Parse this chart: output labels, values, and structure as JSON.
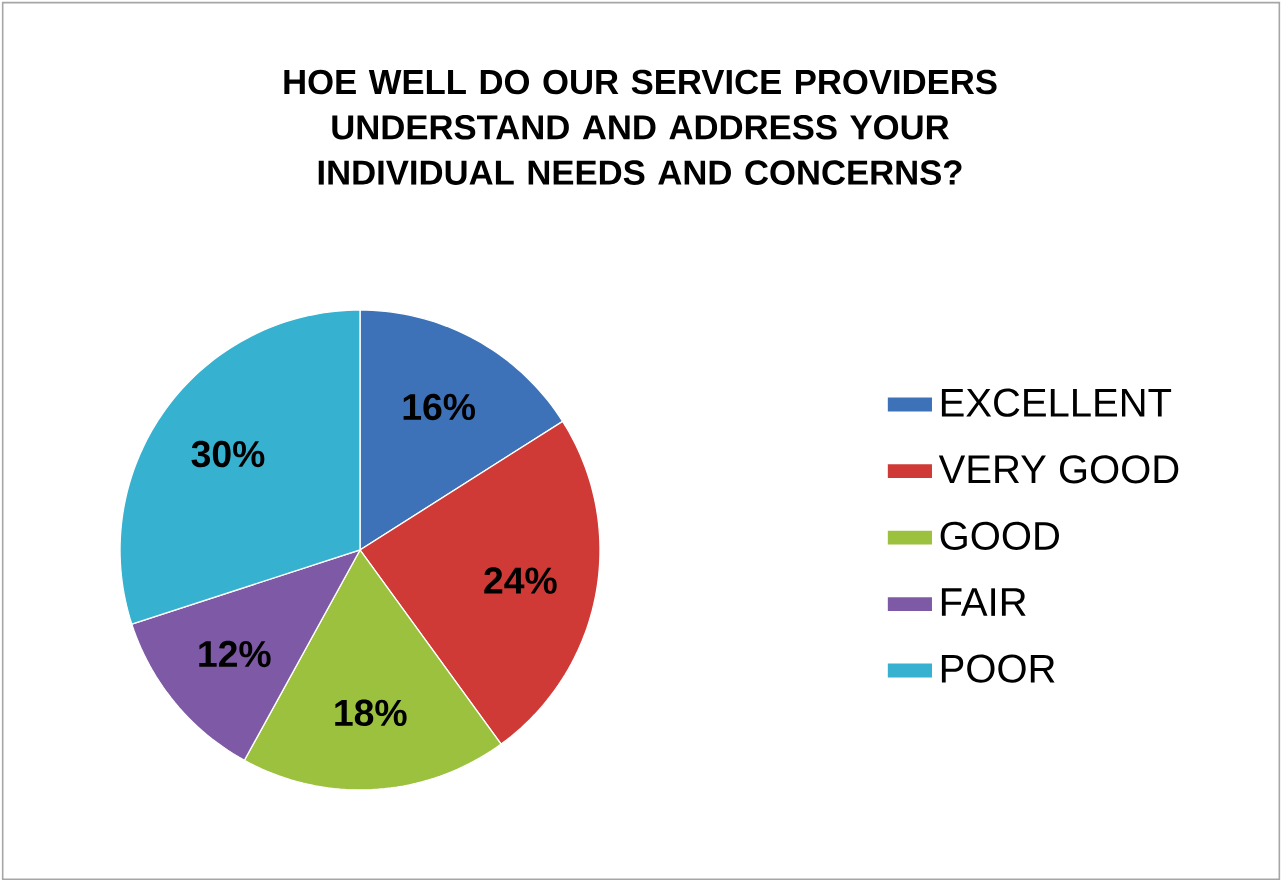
{
  "chart_data": {
    "type": "pie",
    "title": "HOE WELL DO OUR SERVICE PROVIDERS UNDERSTAND AND ADDRESS YOUR INDIVIDUAL NEEDS AND CONCERNS?",
    "categories": [
      "EXCELLENT",
      "VERY GOOD",
      "GOOD",
      "FAIR",
      "POOR"
    ],
    "values": [
      16,
      24,
      18,
      12,
      30
    ],
    "value_labels": [
      "16%",
      "24%",
      "18%",
      "12%",
      "30%"
    ],
    "colors": [
      "#3d72b8",
      "#cf3a36",
      "#9cc13f",
      "#7e5aa6",
      "#36b1cf"
    ],
    "legend": "right"
  }
}
